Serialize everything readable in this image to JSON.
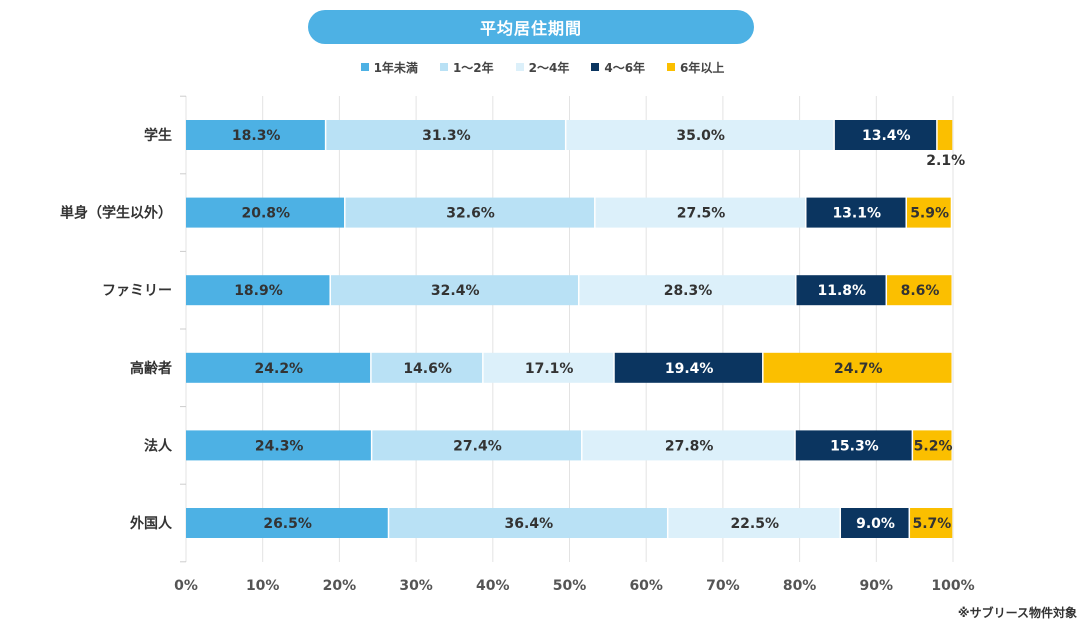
{
  "chart_data": {
    "type": "bar",
    "orientation": "horizontal",
    "stacked": true,
    "title": "平均居住期間",
    "categories": [
      "学生",
      "単身（学生以外）",
      "ファミリー",
      "高齢者",
      "法人",
      "外国人"
    ],
    "series": [
      {
        "name": "1年未満",
        "color": "#4db1e4",
        "label_color": "#333333",
        "values": [
          18.3,
          20.8,
          18.9,
          24.2,
          24.3,
          26.5
        ]
      },
      {
        "name": "1～2年",
        "color": "#b9e1f5",
        "label_color": "#333333",
        "values": [
          31.3,
          32.6,
          32.4,
          14.6,
          27.4,
          36.4
        ]
      },
      {
        "name": "2～4年",
        "color": "#dcf0fa",
        "label_color": "#333333",
        "values": [
          35.0,
          27.5,
          28.3,
          17.1,
          27.8,
          22.5
        ]
      },
      {
        "name": "4～6年",
        "color": "#0b3560",
        "label_color": "#ffffff",
        "values": [
          13.4,
          13.1,
          11.8,
          19.4,
          15.3,
          9.0
        ]
      },
      {
        "name": "6年以上",
        "color": "#fbbf00",
        "label_color": "#333333",
        "values": [
          2.1,
          5.9,
          8.6,
          24.7,
          5.2,
          5.7
        ]
      }
    ],
    "value_suffix": "%",
    "xlim": [
      0,
      100
    ],
    "xticks": [
      "0%",
      "10%",
      "20%",
      "30%",
      "40%",
      "50%",
      "60%",
      "70%",
      "80%",
      "90%",
      "100%"
    ],
    "grid": true,
    "legend_position": "top"
  },
  "footnote": "※サブリース物件対象"
}
